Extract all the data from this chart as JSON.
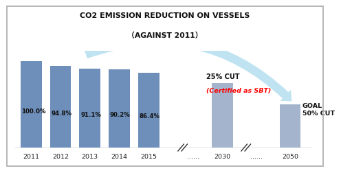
{
  "title_line1": "CO2 EMISSION REDUCTION ON VESSELS",
  "title_line2": "（AGAINST 2011）",
  "bars_labels": [
    "2011",
    "2012",
    "2013",
    "2014",
    "2015"
  ],
  "bars_values": [
    100.0,
    94.8,
    91.1,
    90.2,
    86.4
  ],
  "bars_pct": [
    "100.0%",
    "94.8%",
    "91.1%",
    "90.2%",
    "86.4%"
  ],
  "bar_color_dark": "#6e8fba",
  "bar_2030_x": 6.5,
  "bar_2030_val": 75,
  "bar_2030_label": "2030",
  "bar_2030_color": "#a4b4cc",
  "bar_2050_x": 8.8,
  "bar_2050_val": 50,
  "bar_2050_label": "2050",
  "bar_2050_color": "#a4b4cc",
  "cut_label_25": "25% CUT",
  "cut_label_50": "GOAL\n50% CUT",
  "sbt_label": "(Certified as SBT)",
  "arrow_color": "#b8e0f0",
  "xlabel_dots1": "......",
  "xlabel_dots2": "......",
  "axis_line_color": "#444444",
  "background_color": "#ffffff",
  "border_color": "#aaaaaa",
  "xlim_min": -0.55,
  "xlim_max": 9.55,
  "ylim_min": 0,
  "ylim_max": 112
}
